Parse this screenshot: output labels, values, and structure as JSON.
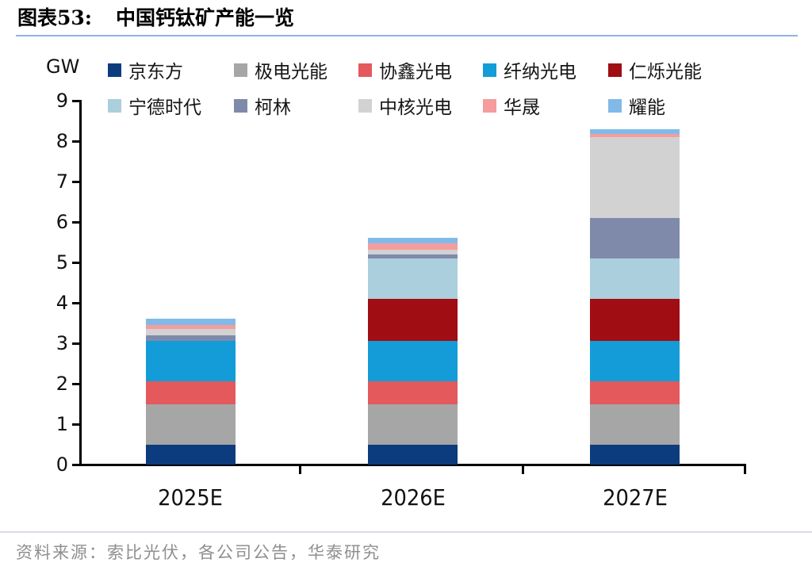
{
  "figure": {
    "label": "图表53:",
    "title": "中国钙钛矿产能一览",
    "source": "资料来源：索比光伏，各公司公告，华泰研究",
    "accent_rule_color": "#8eb4e3"
  },
  "chart_data": {
    "type": "bar",
    "stacked": true,
    "title": "中国钙钛矿产能一览",
    "xlabel": "",
    "ylabel": "GW",
    "ylim": [
      0,
      9
    ],
    "yticks": [
      0,
      1,
      2,
      3,
      4,
      5,
      6,
      7,
      8,
      9
    ],
    "grid": false,
    "legend_position": "top",
    "categories": [
      "2025E",
      "2026E",
      "2027E"
    ],
    "series": [
      {
        "name": "京东方",
        "color": "#0d3c7e",
        "values": [
          0.5,
          0.5,
          0.5
        ]
      },
      {
        "name": "极电光能",
        "color": "#a6a6a6",
        "values": [
          1.0,
          1.0,
          1.0
        ]
      },
      {
        "name": "协鑫光电",
        "color": "#e4595c",
        "values": [
          0.55,
          0.55,
          0.55
        ]
      },
      {
        "name": "纤纳光电",
        "color": "#139cd7",
        "values": [
          1.0,
          1.0,
          1.0
        ]
      },
      {
        "name": "仁烁光能",
        "color": "#a00d12",
        "values": [
          0,
          1.05,
          1.05
        ]
      },
      {
        "name": "宁德时代",
        "color": "#abcfdc",
        "values": [
          0,
          1.0,
          1.0
        ]
      },
      {
        "name": "柯林",
        "color": "#7f8aab",
        "values": [
          0.15,
          0.1,
          1.0
        ]
      },
      {
        "name": "中核光电",
        "color": "#d2d2d2",
        "values": [
          0.15,
          0.12,
          2.0
        ]
      },
      {
        "name": "华晟",
        "color": "#f59c9e",
        "values": [
          0.1,
          0.16,
          0.08
        ]
      },
      {
        "name": "耀能",
        "color": "#81bae8",
        "values": [
          0.15,
          0.12,
          0.12
        ]
      }
    ],
    "totals": [
      3.6,
      5.6,
      8.3
    ]
  }
}
